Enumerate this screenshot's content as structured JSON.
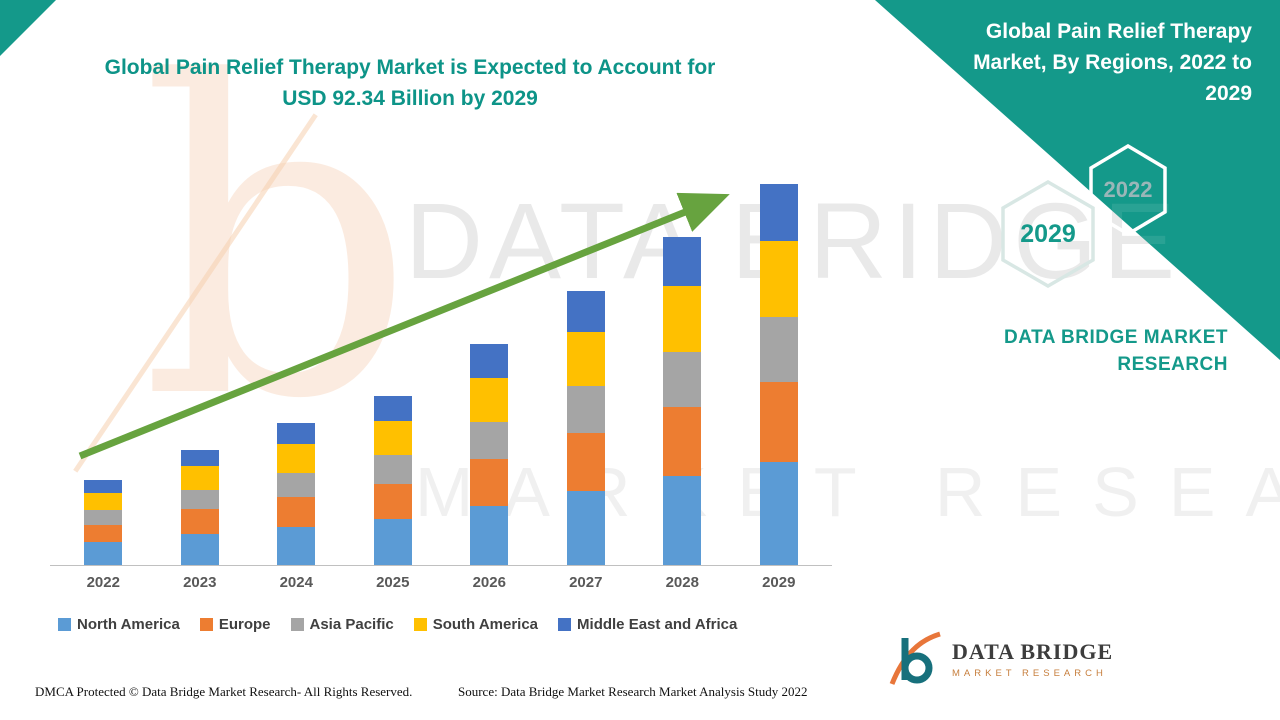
{
  "colors": {
    "teal": "#14998a",
    "orange": "#e8763a",
    "arrow_green": "#67a33f",
    "watermark_gray": "#e9e9e9"
  },
  "icons": {
    "trend": "up-right-trend-arrow",
    "hexagon_top": "hexagon-outline",
    "hexagon_bottom": "hexagon-outline",
    "logo_mark": "data-bridge-b-logo"
  },
  "main_title": {
    "line1": "Global Pain Relief Therapy Market is Expected to Account for",
    "line2": "USD 92.34 Billion by 2029"
  },
  "right_panel": {
    "heading": "Global Pain Relief Therapy Market, By Regions, 2022 to 2029",
    "hex_top": "2022",
    "hex_bottom": "2029",
    "brand_text": "DATA BRIDGE MARKET RESEARCH"
  },
  "watermark": {
    "line1": "DATA BRIDGE",
    "line2": "MARKET RESEARCH",
    "big_letter": "b"
  },
  "footer": {
    "dmca": "DMCA Protected © Data Bridge Market Research- All Rights Reserved.",
    "source": "Source: Data Bridge Market Research Market Analysis Study 2022"
  },
  "logo": {
    "name": "DATA BRIDGE",
    "sub": "MARKET RESEARCH"
  },
  "chart_data": {
    "type": "bar",
    "stacked": true,
    "title": "Global Pain Relief Therapy Market, By Regions, 2022 to 2029 (USD Billion)",
    "categories": [
      "2022",
      "2023",
      "2024",
      "2025",
      "2026",
      "2027",
      "2028",
      "2029"
    ],
    "series": [
      {
        "name": "North America",
        "color": "#5B9BD5",
        "values": [
          5.5,
          7.6,
          9.3,
          11.1,
          14.4,
          18.0,
          21.5,
          24.9
        ]
      },
      {
        "name": "Europe",
        "color": "#ED7D31",
        "values": [
          4.3,
          5.9,
          7.2,
          8.6,
          11.2,
          14.0,
          16.7,
          19.4
        ]
      },
      {
        "name": "Asia Pacific",
        "color": "#A5A5A5",
        "values": [
          3.5,
          4.8,
          5.9,
          7.0,
          9.1,
          11.3,
          13.5,
          15.7
        ]
      },
      {
        "name": "South America",
        "color": "#FFC000",
        "values": [
          4.1,
          5.6,
          6.9,
          8.2,
          10.7,
          13.3,
          15.9,
          18.5
        ]
      },
      {
        "name": "Middle East and Africa",
        "color": "#4472C4",
        "values": [
          3.1,
          4.1,
          5.2,
          6.1,
          8.1,
          9.9,
          11.9,
          13.84
        ]
      }
    ],
    "totals_by_year": [
      20.5,
      28.0,
      34.5,
      41.0,
      53.5,
      66.5,
      79.5,
      92.34
    ],
    "ylim": [
      0,
      95
    ],
    "xlabel": "",
    "ylabel": "",
    "grid": false,
    "legend_position": "bottom",
    "trend_arrow": true
  }
}
